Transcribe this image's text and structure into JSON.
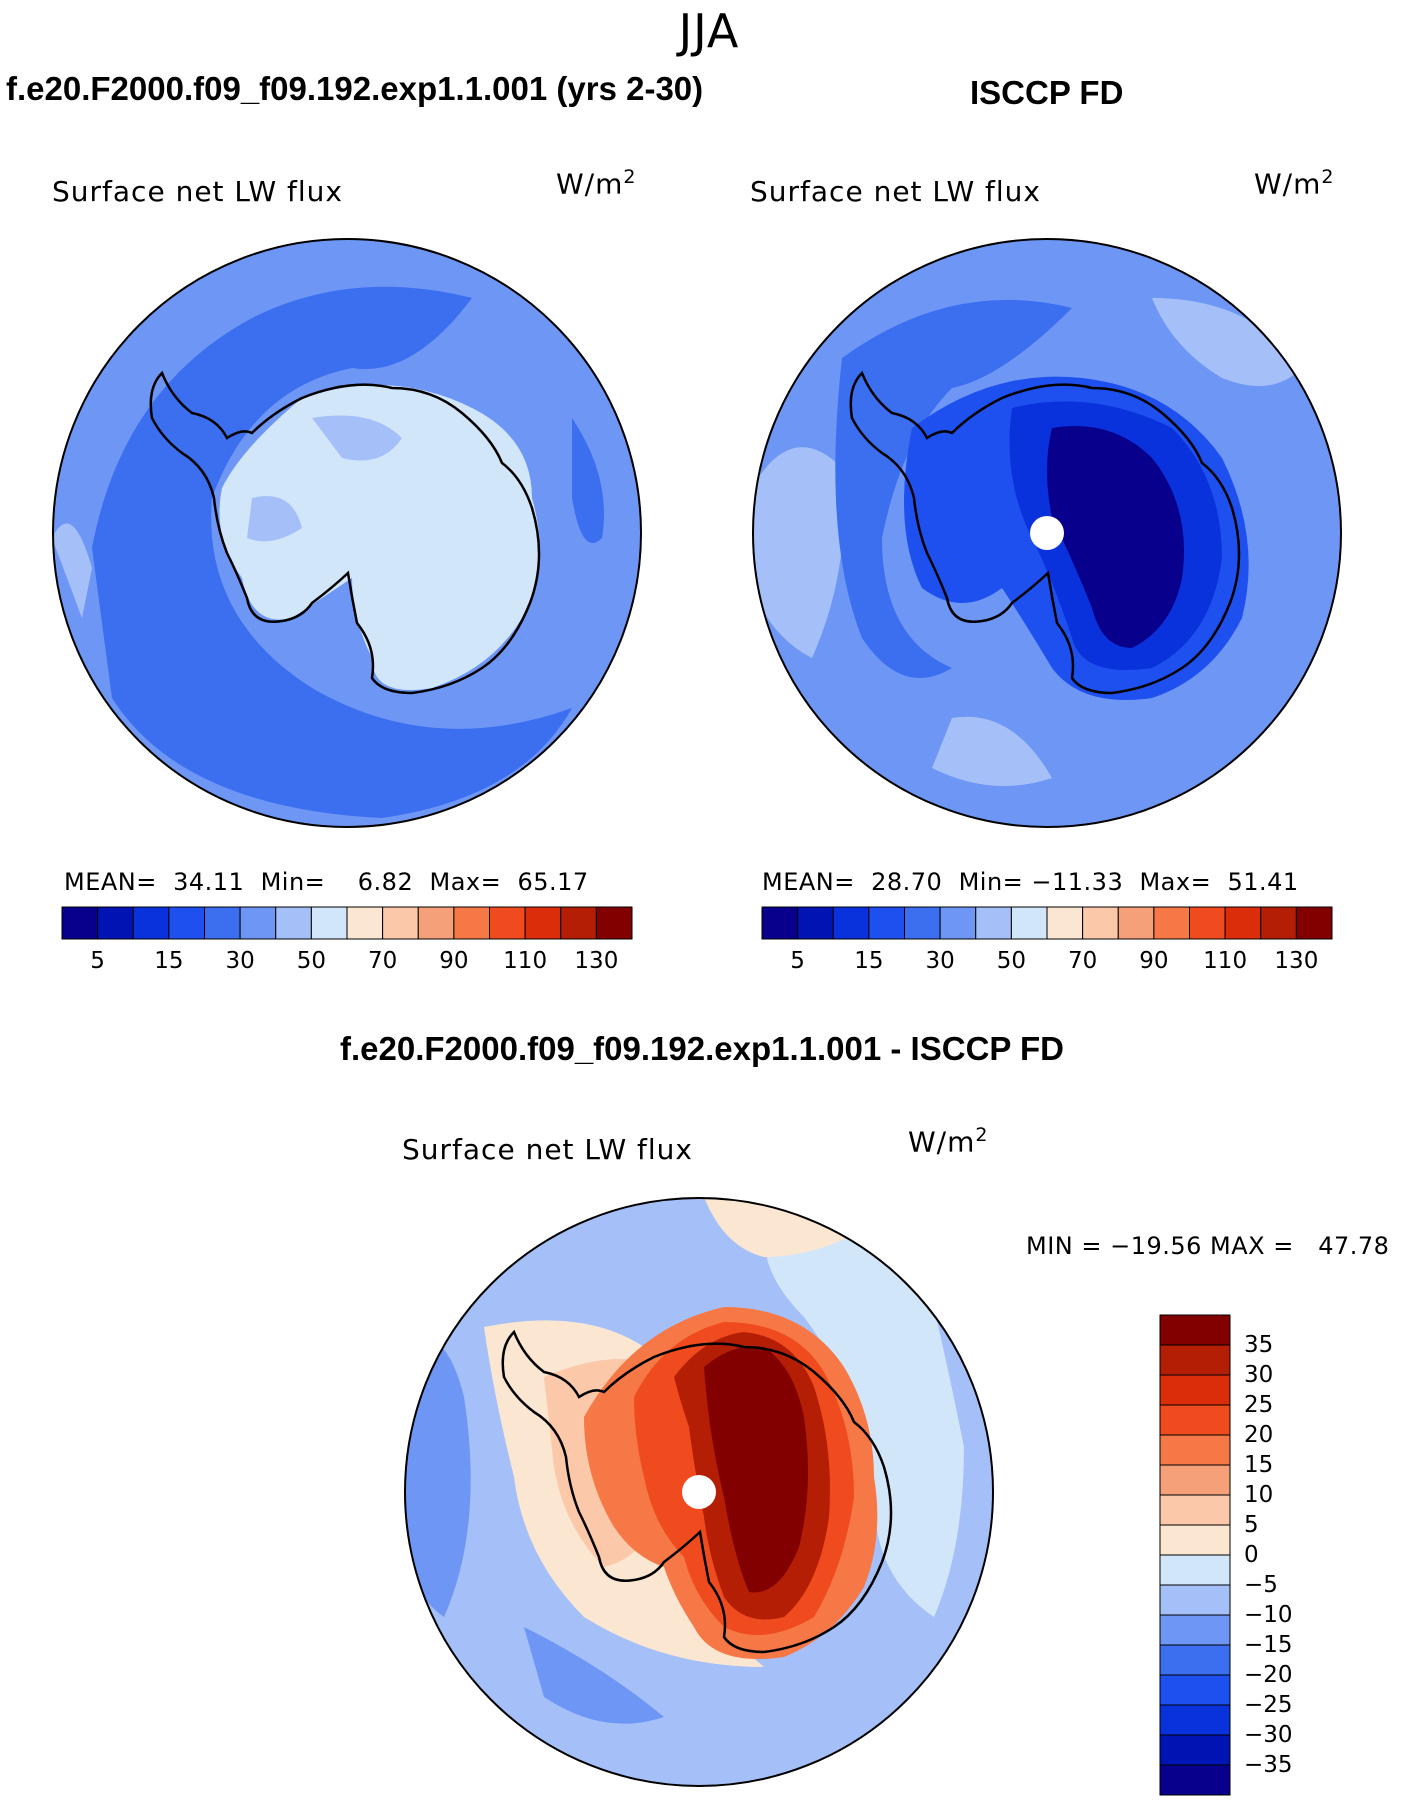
{
  "season": "JJA",
  "panels": [
    {
      "case_title": "f.e20.F2000.f09_f09.192.exp1.1.001 (yrs 2-30)",
      "variable": "Surface net LW flux",
      "units_base": "W/m",
      "units_exp": "2",
      "stats": "MEAN=  34.11  Min=    6.82  Max=  65.17"
    },
    {
      "case_title": "ISCCP FD",
      "variable": "Surface net LW flux",
      "units_base": "W/m",
      "units_exp": "2",
      "stats": "MEAN=  28.70  Min= −11.33  Max=  51.41"
    },
    {
      "case_title": "f.e20.F2000.f09_f09.192.exp1.1.001 - ISCCP FD",
      "variable": "Surface net LW flux",
      "units_base": "W/m",
      "units_exp": "2",
      "stats": "MIN = −19.56 MAX =   47.78"
    }
  ],
  "colorbar_abs": {
    "tick_labels": [
      "5",
      "15",
      "30",
      "50",
      "70",
      "90",
      "110",
      "130"
    ],
    "colors": [
      "#08008c",
      "#0014b4",
      "#0a32dc",
      "#1e50f0",
      "#3c6ef0",
      "#6e96f5",
      "#a5c0f8",
      "#d2e6fa",
      "#fbe6d2",
      "#fbc8aa",
      "#f5a078",
      "#f57846",
      "#f04b1e",
      "#dc2d0a",
      "#b41e05",
      "#820000"
    ]
  },
  "colorbar_diff": {
    "tick_labels": [
      "35",
      "30",
      "25",
      "20",
      "15",
      "10",
      "5",
      "0",
      "−5",
      "−10",
      "−15",
      "−20",
      "−25",
      "−30",
      "−35"
    ],
    "colors": [
      "#820000",
      "#b41e05",
      "#dc2d0a",
      "#f04b1e",
      "#f57846",
      "#f5a078",
      "#fbc8aa",
      "#fbe6d2",
      "#d2e6fa",
      "#a5c0f8",
      "#6e96f5",
      "#3c6ef0",
      "#1e50f0",
      "#0a32dc",
      "#0014b4",
      "#08008c"
    ]
  }
}
